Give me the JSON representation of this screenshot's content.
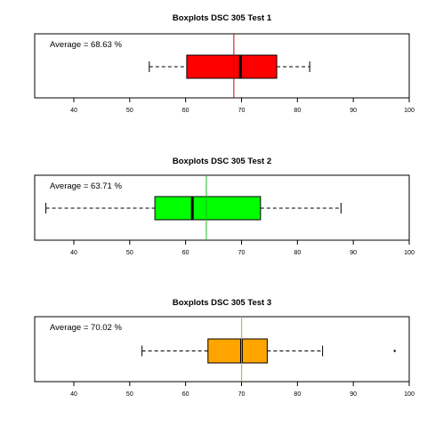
{
  "chart_data": [
    {
      "type": "boxplot",
      "title": "Boxplots DSC 305 Test 1",
      "annotation": "Average = 68.63 %",
      "mean": 68.63,
      "box": {
        "whisker_low": 53.5,
        "q1": 60.2,
        "median": 69.8,
        "q3": 76.3,
        "whisker_high": 82.2
      },
      "outliers": [],
      "fill_color": "#ff0000",
      "mean_line_color": "#cc0000",
      "xlim": [
        33,
        100
      ],
      "xticks": [
        40,
        50,
        60,
        70,
        80,
        90,
        100
      ]
    },
    {
      "type": "boxplot",
      "title": "Boxplots DSC 305 Test 2",
      "annotation": "Average = 63.71 %",
      "mean": 63.71,
      "box": {
        "whisker_low": 35.0,
        "q1": 54.5,
        "median": 61.2,
        "q3": 73.4,
        "whisker_high": 87.8
      },
      "outliers": [],
      "fill_color": "#00ff00",
      "mean_line_color": "#22bb22",
      "xlim": [
        33,
        100
      ],
      "xticks": [
        40,
        50,
        60,
        70,
        80,
        90,
        100
      ]
    },
    {
      "type": "boxplot",
      "title": "Boxplots DSC 305 Test 3",
      "annotation": "Average = 70.02 %",
      "mean": 70.02,
      "box": {
        "whisker_low": 52.2,
        "q1": 64.0,
        "median": 70.0,
        "q3": 74.6,
        "whisker_high": 84.5
      },
      "outliers": [
        97.4
      ],
      "fill_color": "#ffa500",
      "mean_line_color": "#ccaa00",
      "xlim": [
        33,
        100
      ],
      "xticks": [
        40,
        50,
        60,
        70,
        80,
        90,
        100
      ]
    }
  ]
}
